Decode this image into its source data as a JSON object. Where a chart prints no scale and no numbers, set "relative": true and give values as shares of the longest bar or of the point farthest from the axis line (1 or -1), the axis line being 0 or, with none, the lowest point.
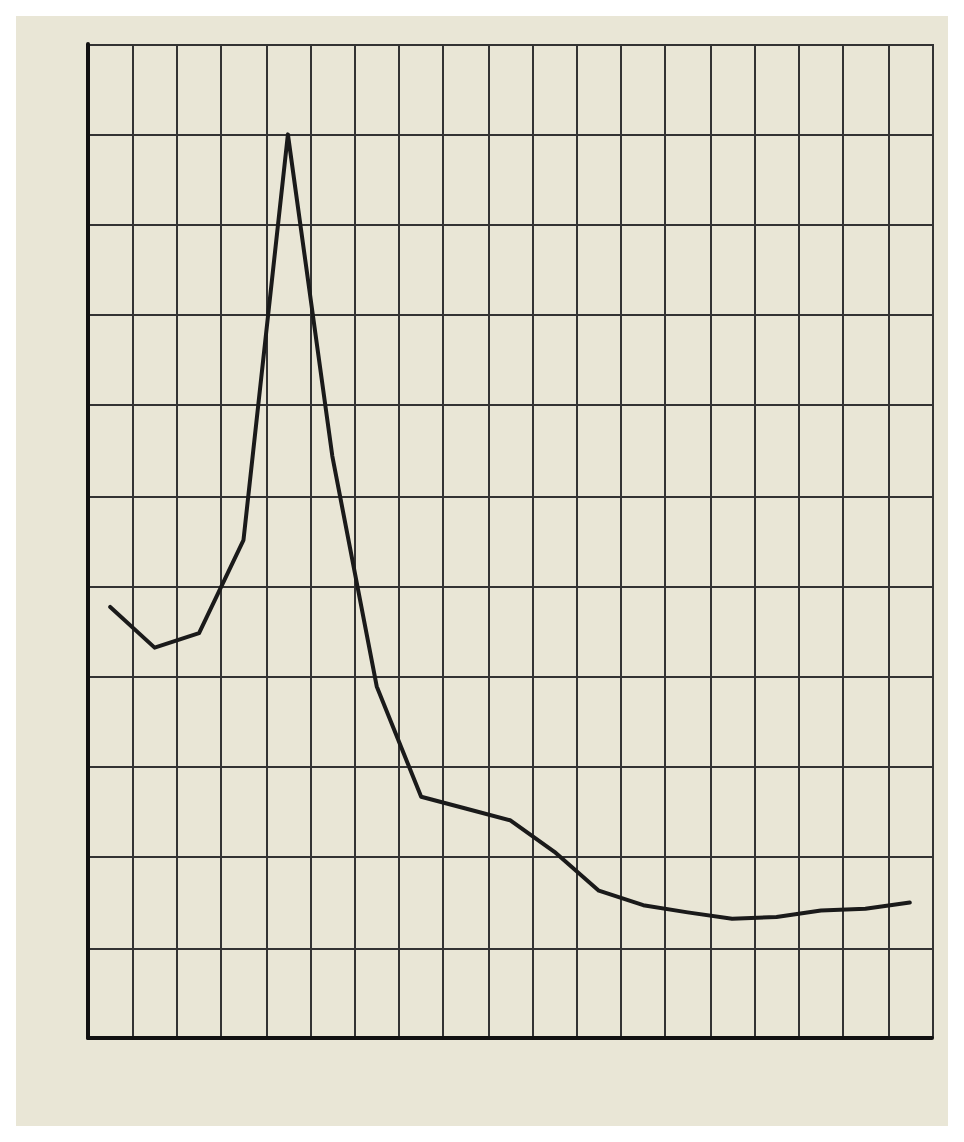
{
  "chart_data": {
    "type": "line",
    "relative": true,
    "grid": true,
    "marker": "none",
    "line_style": "solid",
    "categories": [
      null,
      null,
      null,
      null,
      null,
      null,
      null,
      null,
      null,
      null,
      null,
      null,
      null,
      null,
      null,
      null,
      null,
      null,
      null
    ],
    "series": [
      {
        "color": "#1a1a1a",
        "values": [
          0.477,
          0.432,
          0.448,
          0.551,
          1,
          0.644,
          0.389,
          0.267,
          0.254,
          0.241,
          0.206,
          0.163,
          0.147,
          0.139,
          0.132,
          0.134,
          0.141,
          0.143,
          0.15
        ]
      }
    ]
  }
}
